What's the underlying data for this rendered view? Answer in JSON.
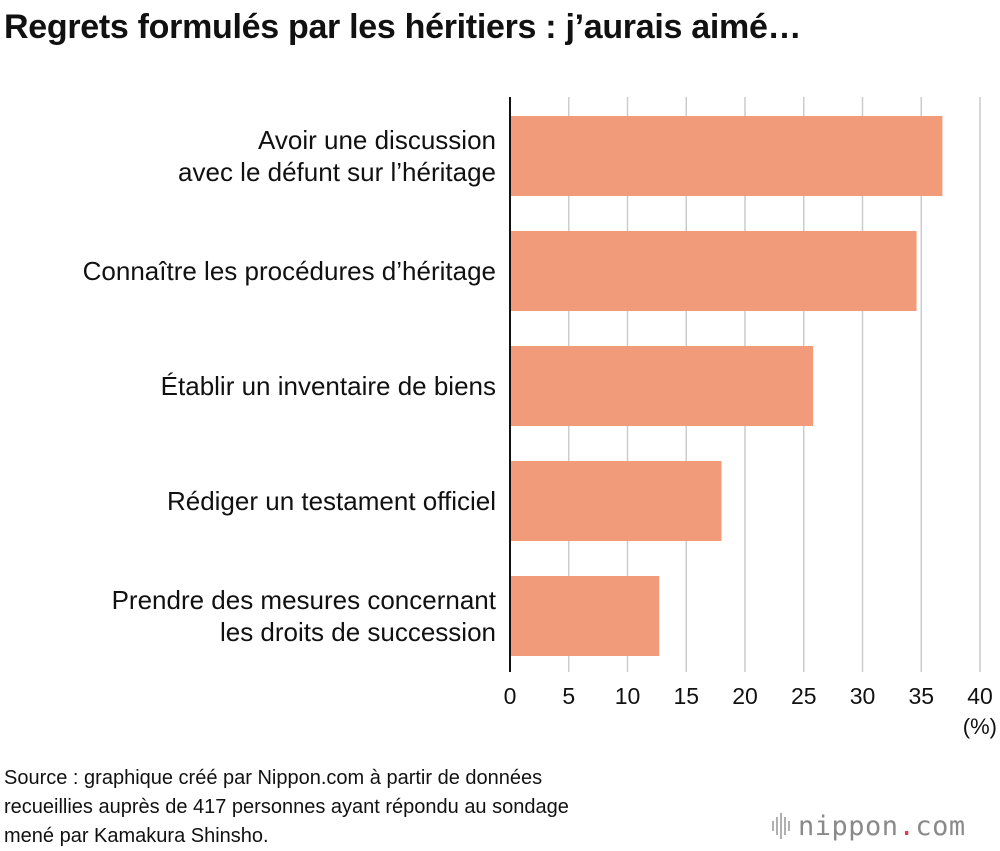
{
  "chart_data": {
    "type": "bar",
    "orientation": "horizontal",
    "title": "Regrets formulés par les héritiers : j’aurais aimé…",
    "categories": [
      [
        "Avoir une discussion",
        "avec le défunt sur l’héritage"
      ],
      [
        "Connaître les procédures d’héritage"
      ],
      [
        "Établir un inventaire de biens"
      ],
      [
        "Rédiger un testament officiel"
      ],
      [
        "Prendre des mesures concernant",
        "les droits de succession"
      ]
    ],
    "values": [
      36.8,
      34.6,
      25.8,
      18.0,
      12.7
    ],
    "xlim": [
      0,
      40
    ],
    "xticks": [
      0,
      5,
      10,
      15,
      20,
      25,
      30,
      35,
      40
    ],
    "xunit": "(%)",
    "grid": true,
    "bar_color": "#f29b7b",
    "source_lines": [
      "Source : graphique créé par Nippon.com à partir de données",
      "recueillies auprès de 417 personnes ayant répondu au sondage",
      "mené par Kamakura Shinsho."
    ]
  },
  "logo": {
    "name": "nippon",
    "dot": ".",
    "tld": "com",
    "dot_color": "#e83a4f"
  }
}
